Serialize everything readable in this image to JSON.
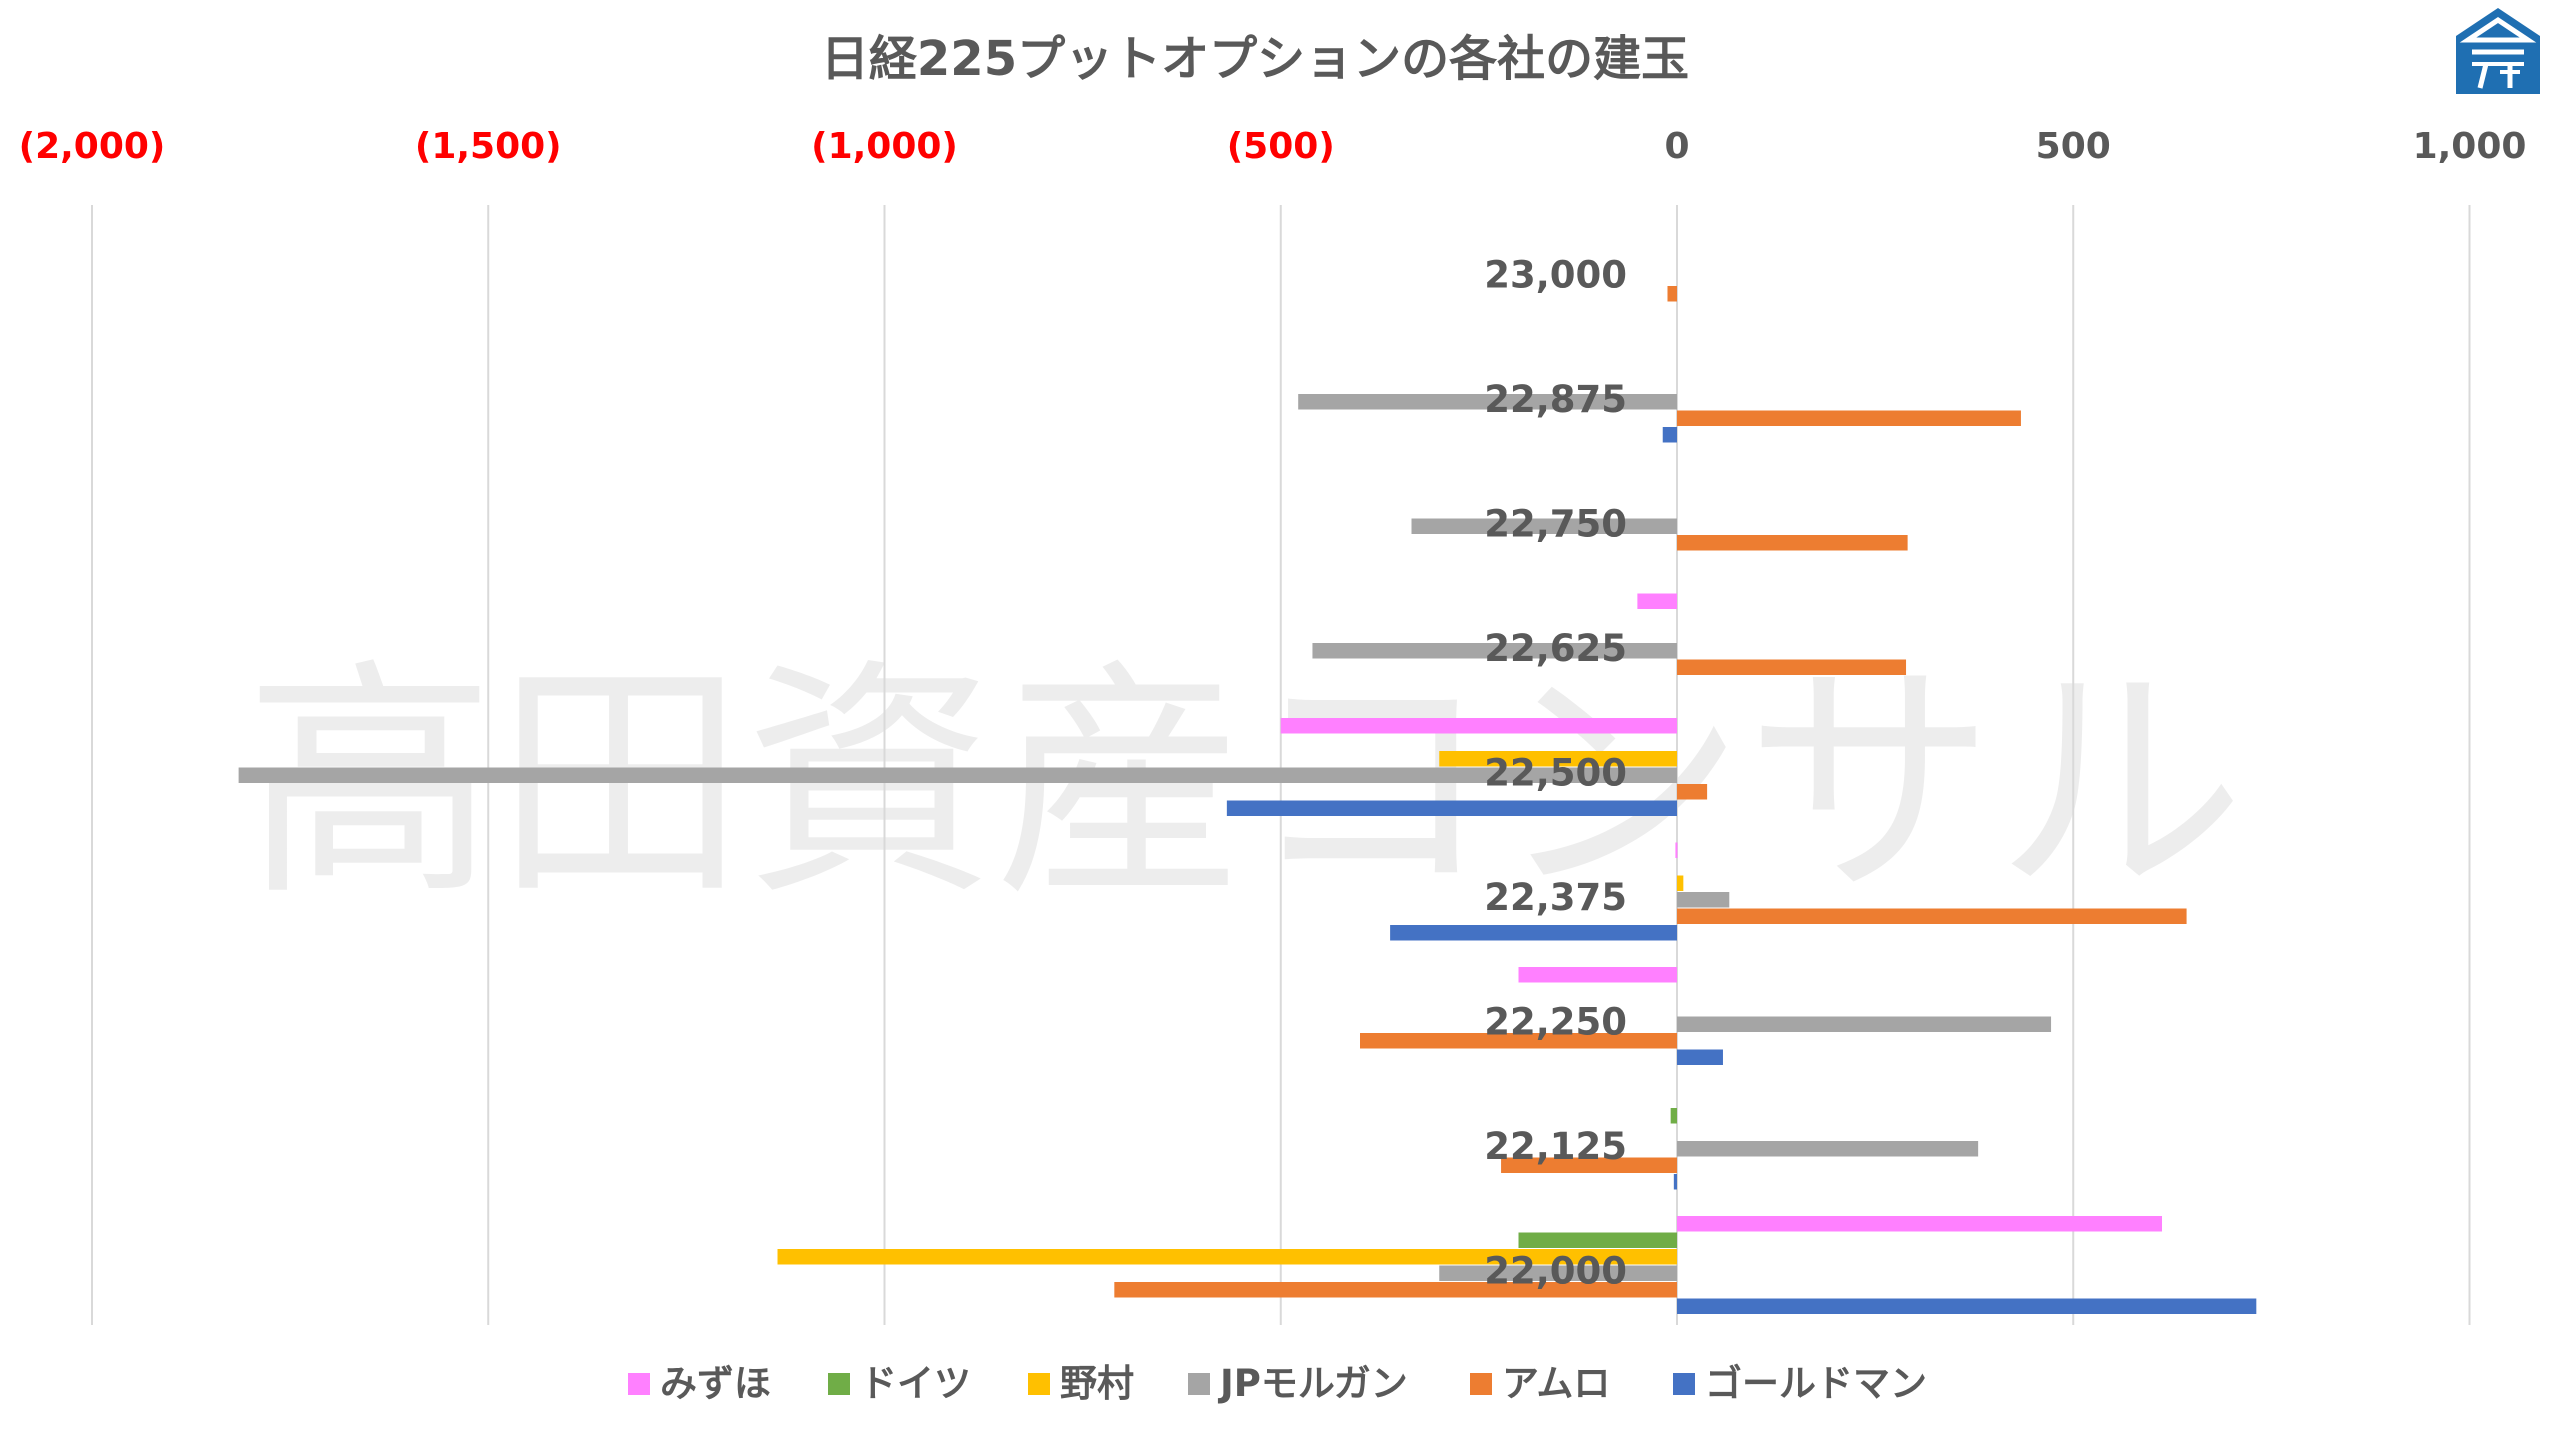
{
  "chart_data": {
    "type": "bar",
    "orientation": "horizontal",
    "title": "日経225プットオプションの各社の建玉",
    "watermark": "高田資産コンサル",
    "xlim": [
      -2000,
      1000
    ],
    "x_ticks": [
      {
        "value": -2000,
        "label": "(2,000)"
      },
      {
        "value": -1500,
        "label": "(1,500)"
      },
      {
        "value": -1000,
        "label": "(1,000)"
      },
      {
        "value": -500,
        "label": "(500)"
      },
      {
        "value": 0,
        "label": "0"
      },
      {
        "value": 500,
        "label": "500"
      },
      {
        "value": 1000,
        "label": "1,000"
      }
    ],
    "negative_tick_color": "#ff0000",
    "grid": true,
    "legend_position": "bottom",
    "categories": [
      "23,000",
      "22,875",
      "22,750",
      "22,625",
      "22,500",
      "22,375",
      "22,250",
      "22,125",
      "22,000"
    ],
    "series": [
      {
        "name": "みずほ",
        "color": "#ff80ff",
        "values": [
          0,
          0,
          0,
          -50,
          -500,
          -2,
          -200,
          0,
          612
        ]
      },
      {
        "name": "ドイツ",
        "color": "#70ad47",
        "values": [
          0,
          0,
          0,
          0,
          0,
          0,
          0,
          -8,
          -200
        ]
      },
      {
        "name": "野村",
        "color": "#ffc000",
        "values": [
          0,
          0,
          0,
          0,
          -300,
          8,
          0,
          0,
          -1135
        ]
      },
      {
        "name": "JPモルガン",
        "color": "#a5a5a5",
        "values": [
          0,
          -478,
          -335,
          -460,
          -1815,
          66,
          472,
          380,
          -300
        ]
      },
      {
        "name": "アムロ",
        "color": "#ed7d31",
        "values": [
          -12,
          434,
          291,
          289,
          38,
          643,
          -400,
          -222,
          -710
        ]
      },
      {
        "name": "ゴールドマン",
        "color": "#4472c4",
        "values": [
          0,
          -18,
          0,
          0,
          -568,
          -362,
          58,
          -4,
          731
        ]
      }
    ]
  },
  "logo": {
    "name": "company-logo",
    "color": "#1f6fb2"
  }
}
